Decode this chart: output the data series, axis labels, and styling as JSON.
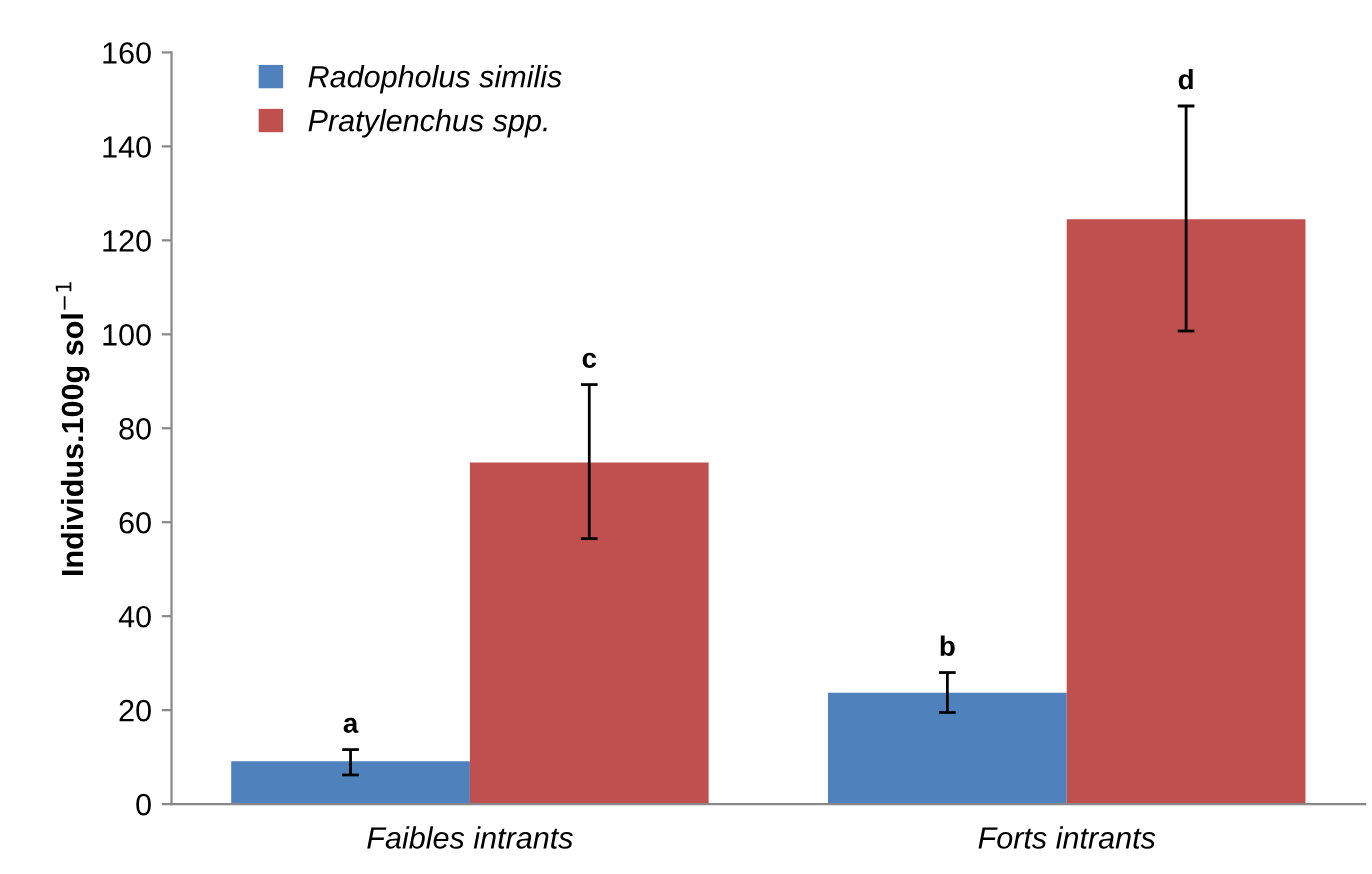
{
  "chart_data": {
    "type": "bar",
    "ylabel": "Individus.100g sol$^{−1}$",
    "categories": [
      "Faibles intrants",
      "Forts intrants"
    ],
    "series": [
      {
        "name": "Radopholus similis",
        "color": "#4f81bd",
        "values": [
          9.1,
          23.7
        ],
        "errors": [
          [
            6.2,
            11.6
          ],
          [
            19.5,
            28.0
          ]
        ]
      },
      {
        "name": "Pratylenchus spp.",
        "color": "#c0504d",
        "values": [
          72.7,
          124.5
        ],
        "errors": [
          [
            56.5,
            89.3
          ],
          [
            100.7,
            148.6
          ]
        ]
      }
    ],
    "annotations": [
      "a",
      "c",
      "b",
      "d"
    ],
    "ylim": [
      0,
      160
    ],
    "yticks": [
      0,
      20,
      40,
      60,
      80,
      100,
      120,
      140,
      160
    ],
    "grid": false,
    "legend": "top left"
  }
}
